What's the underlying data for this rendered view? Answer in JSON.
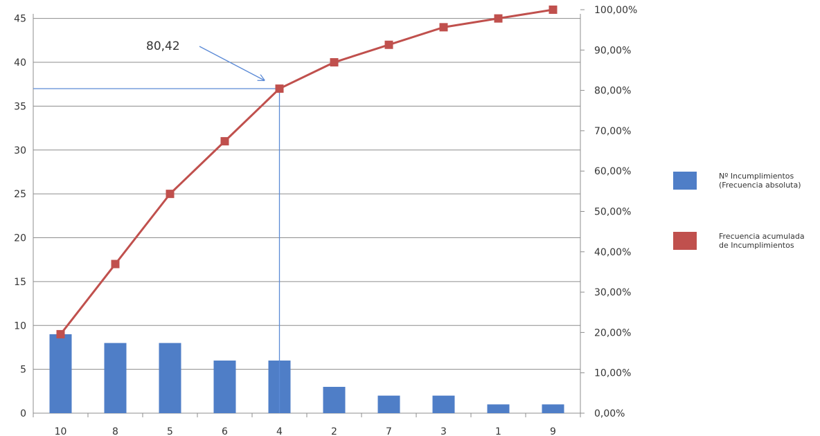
{
  "chart_data": {
    "type": "bar",
    "categories": [
      "10",
      "8",
      "5",
      "6",
      "4",
      "2",
      "7",
      "3",
      "1",
      "9"
    ],
    "series": [
      {
        "name": "Nº Incumplimientos (Frecuencia absoluta)",
        "type": "bar",
        "axis": "left",
        "color": "#4F7EC7",
        "values": [
          9,
          8,
          8,
          6,
          6,
          3,
          2,
          2,
          1,
          1
        ]
      },
      {
        "name": "Frecuencia acumulada de Incumplimientos",
        "type": "line",
        "axis": "right",
        "color": "#C0504D",
        "values": [
          19.57,
          36.96,
          54.35,
          67.39,
          80.43,
          86.96,
          91.3,
          95.65,
          97.83,
          100.0
        ]
      }
    ],
    "y_left": {
      "ylim": [
        0,
        46
      ],
      "ticks": [
        0,
        5,
        10,
        15,
        20,
        25,
        30,
        35,
        40,
        45
      ],
      "tick_labels": [
        "0",
        "5",
        "10",
        "15",
        "20",
        "25",
        "30",
        "35",
        "40",
        "45"
      ]
    },
    "y_right": {
      "ylim": [
        0,
        100
      ],
      "ticks": [
        0,
        10,
        20,
        30,
        40,
        50,
        60,
        70,
        80,
        90,
        100
      ],
      "tick_labels": [
        "0,00%",
        "10,00%",
        "20,00%",
        "30,00%",
        "40,00%",
        "50,00%",
        "60,00%",
        "70,00%",
        "80,00%",
        "90,00%",
        "100,00%"
      ]
    },
    "annotation": {
      "text": "80,42",
      "category": "4",
      "value": 80.42
    },
    "grid": true,
    "legend_position": "right",
    "xlabel": "",
    "ylabel": "",
    "title": "",
    "gridline_color": "#8c8c8c",
    "guide_color": "#5b8ad6"
  }
}
